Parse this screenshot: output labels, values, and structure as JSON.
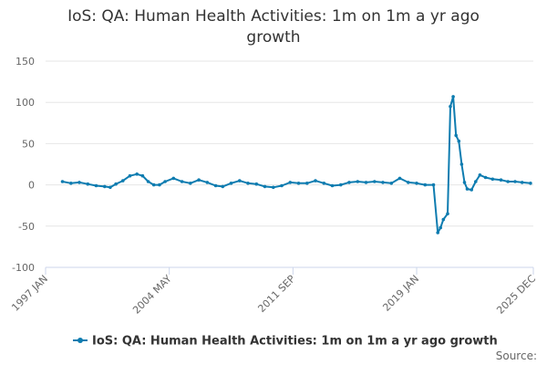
{
  "chart_data": {
    "type": "line",
    "title_lines": [
      "IoS: QA: Human Health Activities: 1m on 1m a yr ago",
      "growth"
    ],
    "xlabel": "",
    "ylabel": "",
    "ylim": [
      -100,
      150
    ],
    "yticks": [
      -100,
      -50,
      0,
      50,
      100,
      150
    ],
    "xlim": [
      "1997-01",
      "2025-12"
    ],
    "xticks": [
      "1997 JAN",
      "2004 MAY",
      "2011 SEP",
      "2019 JAN",
      "2025 DEC"
    ],
    "grid": true,
    "legend_position": "bottom",
    "source_label": "Source:",
    "series": [
      {
        "name": "IoS: QA: Human Health Activities: 1m on 1m a yr ago growth",
        "color": "#0e7cb0",
        "points": [
          [
            "1998-01",
            4
          ],
          [
            "1998-07",
            2
          ],
          [
            "1999-01",
            3
          ],
          [
            "1999-07",
            1
          ],
          [
            "2000-01",
            -1
          ],
          [
            "2000-07",
            -2
          ],
          [
            "2000-11",
            -3
          ],
          [
            "2001-03",
            1
          ],
          [
            "2001-08",
            5
          ],
          [
            "2002-01",
            11
          ],
          [
            "2002-06",
            13
          ],
          [
            "2002-10",
            11
          ],
          [
            "2003-02",
            4
          ],
          [
            "2003-06",
            0
          ],
          [
            "2003-10",
            0
          ],
          [
            "2004-02",
            4
          ],
          [
            "2004-08",
            8
          ],
          [
            "2005-02",
            4
          ],
          [
            "2005-08",
            2
          ],
          [
            "2006-02",
            6
          ],
          [
            "2006-08",
            3
          ],
          [
            "2007-02",
            -1
          ],
          [
            "2007-07",
            -2
          ],
          [
            "2008-01",
            2
          ],
          [
            "2008-07",
            5
          ],
          [
            "2009-01",
            2
          ],
          [
            "2009-07",
            1
          ],
          [
            "2010-01",
            -2
          ],
          [
            "2010-07",
            -3
          ],
          [
            "2011-01",
            -1
          ],
          [
            "2011-07",
            3
          ],
          [
            "2012-01",
            2
          ],
          [
            "2012-07",
            2
          ],
          [
            "2013-01",
            5
          ],
          [
            "2013-07",
            2
          ],
          [
            "2014-01",
            -1
          ],
          [
            "2014-07",
            0
          ],
          [
            "2015-01",
            3
          ],
          [
            "2015-07",
            4
          ],
          [
            "2016-01",
            3
          ],
          [
            "2016-07",
            4
          ],
          [
            "2017-01",
            3
          ],
          [
            "2017-07",
            2
          ],
          [
            "2018-01",
            8
          ],
          [
            "2018-07",
            3
          ],
          [
            "2019-01",
            2
          ],
          [
            "2019-07",
            0
          ],
          [
            "2020-01",
            0
          ],
          [
            "2020-04",
            -58
          ],
          [
            "2020-06",
            -52
          ],
          [
            "2020-08",
            -42
          ],
          [
            "2020-11",
            -35
          ],
          [
            "2021-01",
            95
          ],
          [
            "2021-03",
            107
          ],
          [
            "2021-05",
            60
          ],
          [
            "2021-07",
            53
          ],
          [
            "2021-09",
            25
          ],
          [
            "2021-11",
            3
          ],
          [
            "2022-01",
            -5
          ],
          [
            "2022-04",
            -6
          ],
          [
            "2022-07",
            4
          ],
          [
            "2022-10",
            12
          ],
          [
            "2023-02",
            9
          ],
          [
            "2023-07",
            7
          ],
          [
            "2024-01",
            6
          ],
          [
            "2024-06",
            4
          ],
          [
            "2024-11",
            4
          ],
          [
            "2025-04",
            3
          ],
          [
            "2025-10",
            2
          ]
        ]
      }
    ]
  }
}
